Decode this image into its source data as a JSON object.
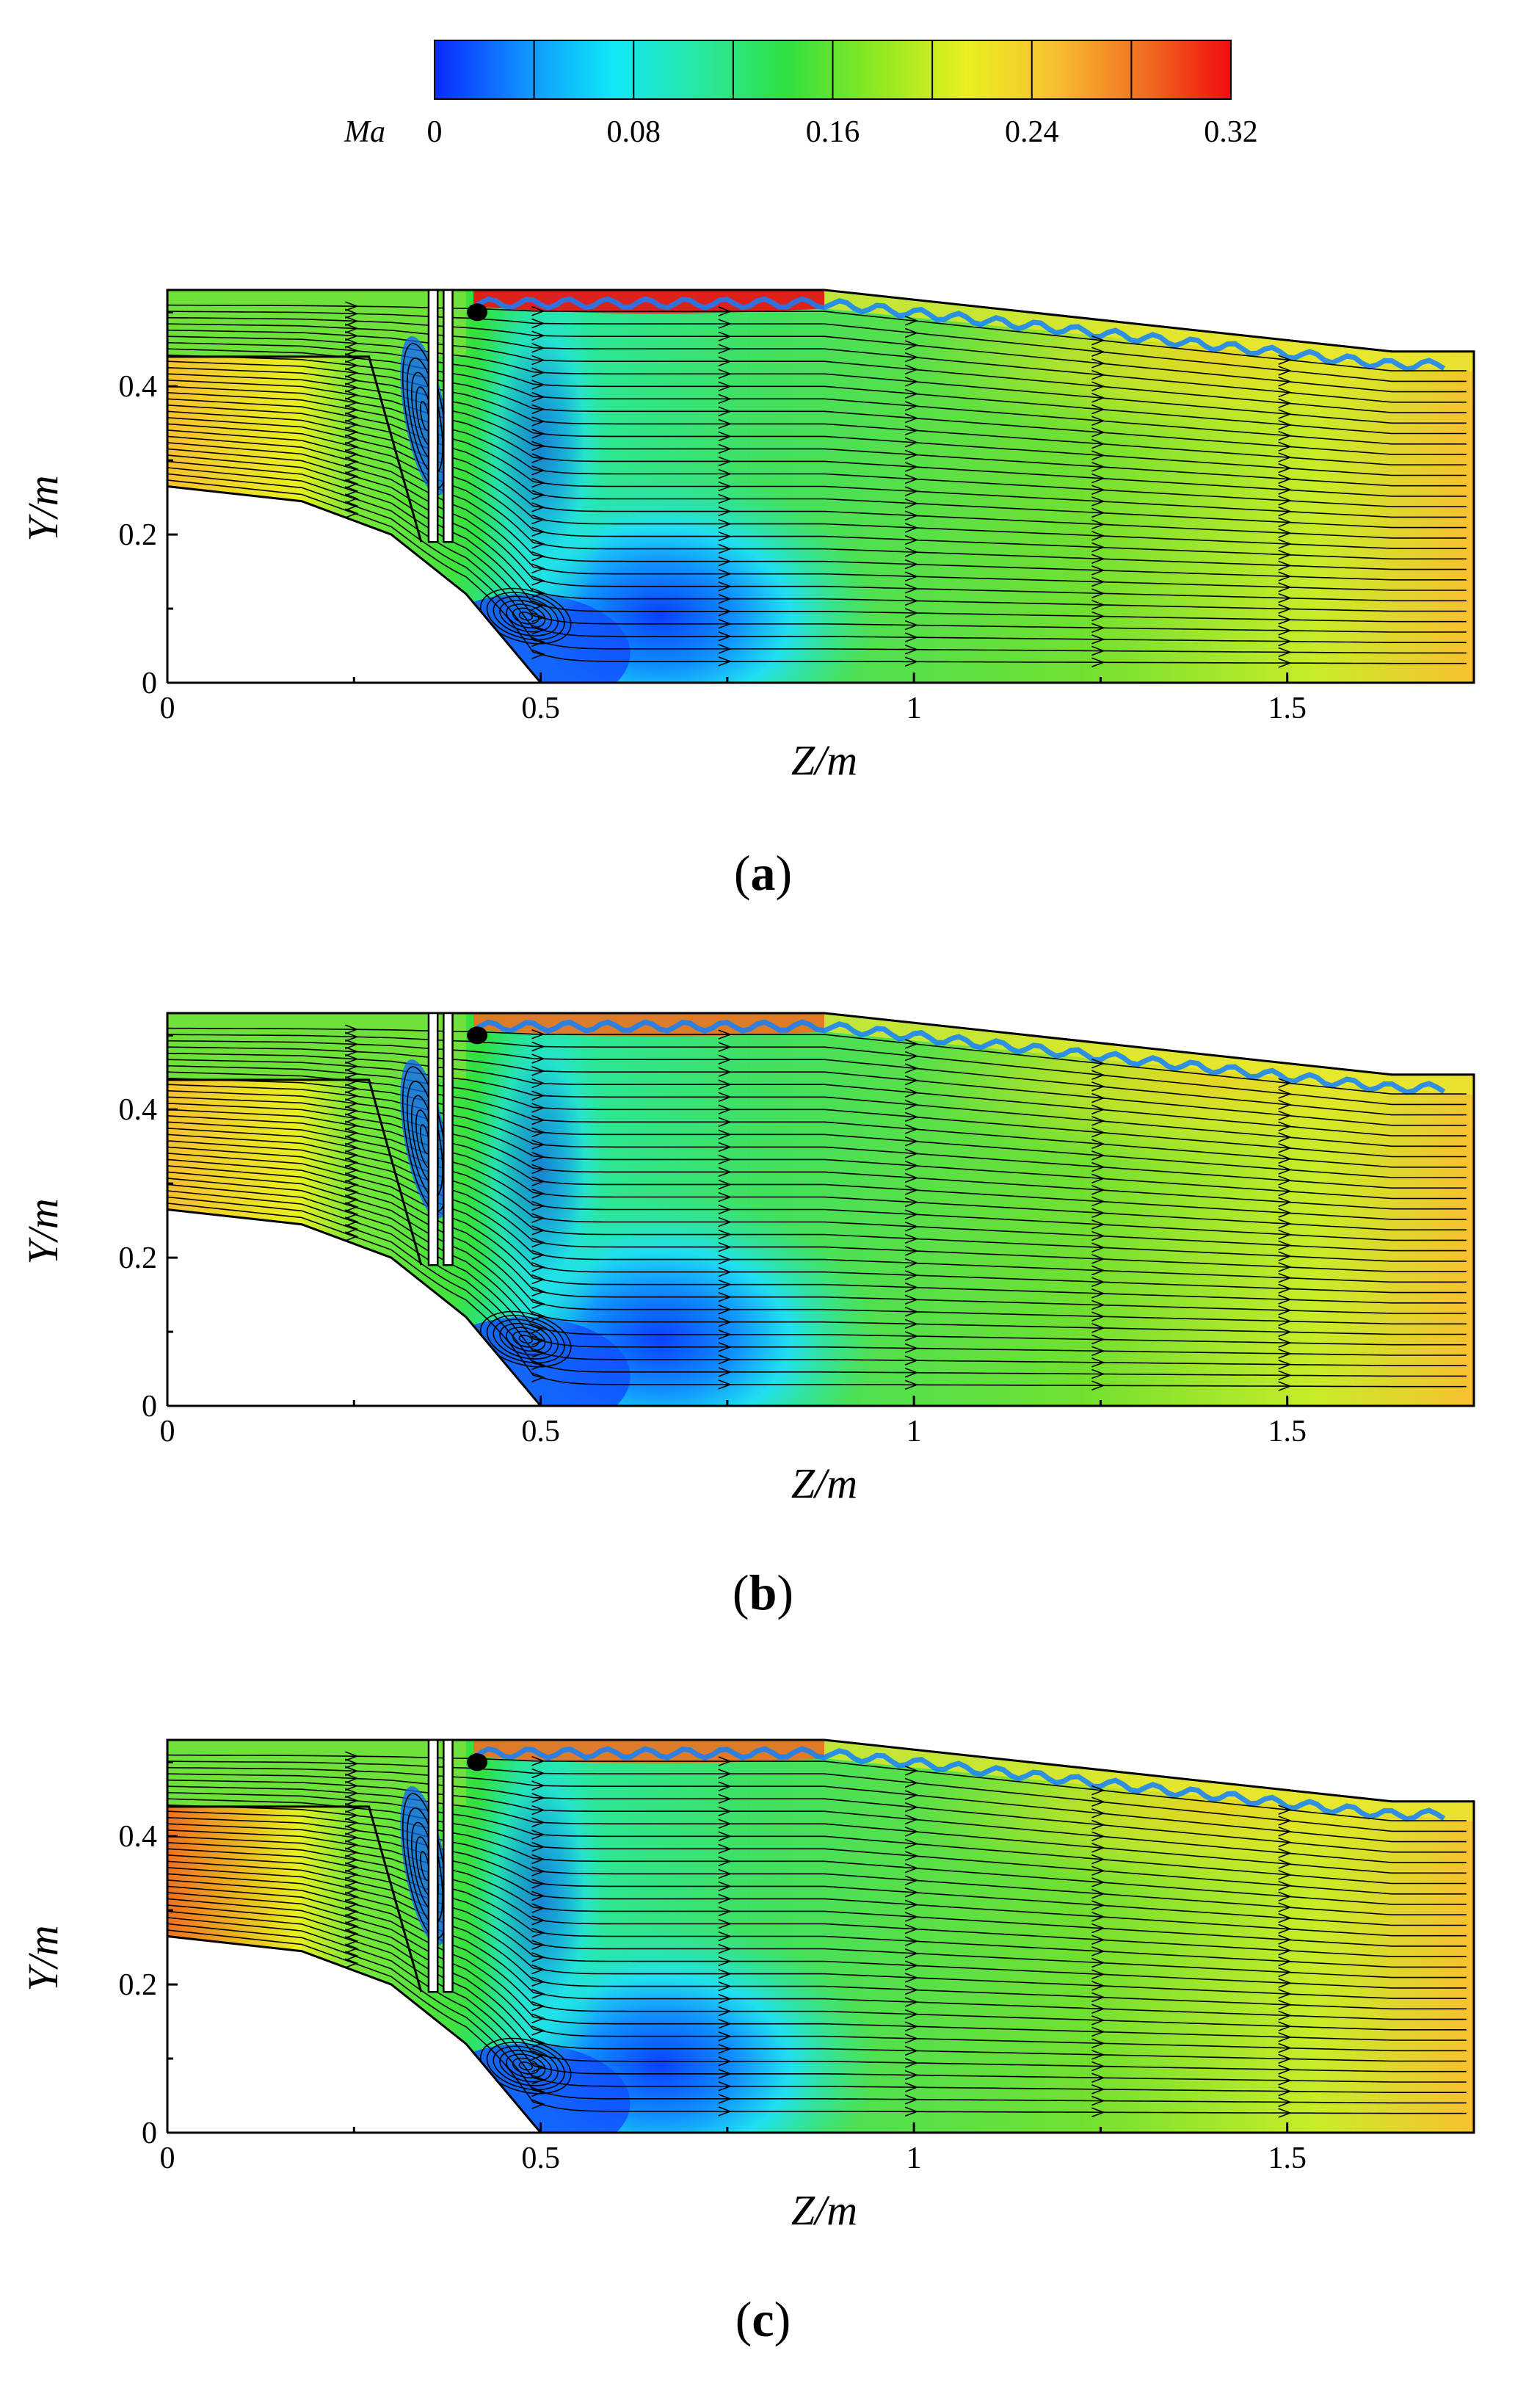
{
  "colorbar": {
    "label": "Ma",
    "ticks": [
      "0",
      "0.08",
      "0.16",
      "0.24",
      "0.32"
    ],
    "min": 0,
    "max": 0.32,
    "levels": 8,
    "colors": [
      "#1030ff",
      "#10b0ff",
      "#20f0d8",
      "#30e070",
      "#40d820",
      "#b8f020",
      "#f0d040",
      "#f02010"
    ]
  },
  "chart_data": [
    {
      "type": "heatmap",
      "subtype": "contour with streamlines",
      "caption": "(a)",
      "caption_letter": "a",
      "xlabel": "Z/m",
      "ylabel": "Y/m",
      "xticks": [
        "0",
        "0.5",
        "1",
        "1.5"
      ],
      "yticks": [
        "0",
        "0.2",
        "0.4"
      ],
      "xlim": [
        0,
        1.75
      ],
      "ylim": [
        0,
        0.53
      ],
      "field": "Ma",
      "inlet_mach": 0.26,
      "upper_wall_jet_mach": 0.32,
      "outlet_mach": 0.24,
      "recirculation_mach": 0.03
    },
    {
      "type": "heatmap",
      "subtype": "contour with streamlines",
      "caption": "(b)",
      "caption_letter": "b",
      "xlabel": "Z/m",
      "ylabel": "Y/m",
      "xticks": [
        "0",
        "0.5",
        "1",
        "1.5"
      ],
      "yticks": [
        "0",
        "0.2",
        "0.4"
      ],
      "xlim": [
        0,
        1.75
      ],
      "ylim": [
        0,
        0.53
      ],
      "field": "Ma",
      "inlet_mach": 0.26,
      "upper_wall_jet_mach": 0.3,
      "outlet_mach": 0.25,
      "recirculation_mach": 0.02
    },
    {
      "type": "heatmap",
      "subtype": "contour with streamlines",
      "caption": "(c)",
      "caption_letter": "c",
      "xlabel": "Z/m",
      "ylabel": "Y/m",
      "xticks": [
        "0",
        "0.5",
        "1",
        "1.5"
      ],
      "yticks": [
        "0",
        "0.2",
        "0.4"
      ],
      "xlim": [
        0,
        1.75
      ],
      "ylim": [
        0,
        0.53
      ],
      "field": "Ma",
      "inlet_mach": 0.27,
      "upper_wall_jet_mach": 0.3,
      "outlet_mach": 0.26,
      "recirculation_mach": 0.02
    }
  ]
}
